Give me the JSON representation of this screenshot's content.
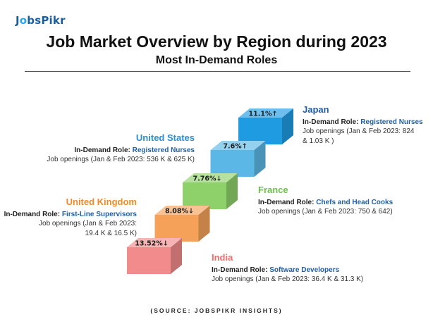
{
  "logo": {
    "pre": "J",
    "o": "o",
    "post": "bsPikr"
  },
  "title": "Job Market Overview by Region during 2023",
  "subtitle": "Most In-Demand Roles",
  "source": "(SOURCE: JOBSPIKR INSIGHTS)",
  "chart_data": {
    "type": "pictorial-steps",
    "title": "Job Market Overview by Region during 2023",
    "subtitle": "Most In-Demand Roles",
    "values": [
      {
        "region": "India",
        "change_label": "13.52%↓",
        "change_pct": -13.52,
        "color": "#f28b8b"
      },
      {
        "region": "United Kingdom",
        "change_label": "8.08%↓",
        "change_pct": -8.08,
        "color": "#f5a15a"
      },
      {
        "region": "France",
        "change_label": "7.76%↓",
        "change_pct": -7.76,
        "color": "#8ed16a"
      },
      {
        "region": "United States",
        "change_label": "7.6%↑",
        "change_pct": 7.6,
        "color": "#5bb8e6"
      },
      {
        "region": "Japan",
        "change_label": "11.1%↑",
        "change_pct": 11.1,
        "color": "#1f9be2"
      }
    ]
  },
  "regions": {
    "japan": {
      "name": "Japan",
      "name_color": "#1f5fa8",
      "role_prefix": "In-Demand Role: ",
      "role": "Registered Nurses",
      "openings_1": "Job openings (Jan & Feb 2023: 824",
      "openings_2": "& 1.03 K )"
    },
    "us": {
      "name": "United States",
      "name_color": "#2b8fd4",
      "role_prefix": "In-Demand Role: ",
      "role": "Registered Nurses",
      "openings": "Job openings (Jan & Feb 2023: 536 K & 625 K)"
    },
    "france": {
      "name": "France",
      "name_color": "#6cc04a",
      "role_prefix": "In-Demand Role:  ",
      "role": "Chefs and Head Cooks",
      "openings": "Job openings (Jan & Feb 2023: 750 & 642)"
    },
    "uk": {
      "name": "United Kingdom",
      "name_color": "#f08a2c",
      "role_prefix": "In-Demand Role: ",
      "role": "First-Line Supervisors",
      "openings_1": "Job openings (Jan & Feb 2023:",
      "openings_2": "19.4 K & 16.5 K)"
    },
    "india": {
      "name": "India",
      "name_color": "#ec6f6f",
      "role_prefix": "In-Demand Role: ",
      "role": "Software Developers",
      "openings": "Job openings (Jan & Feb 2023: 36.4 K & 31.3 K)"
    }
  }
}
